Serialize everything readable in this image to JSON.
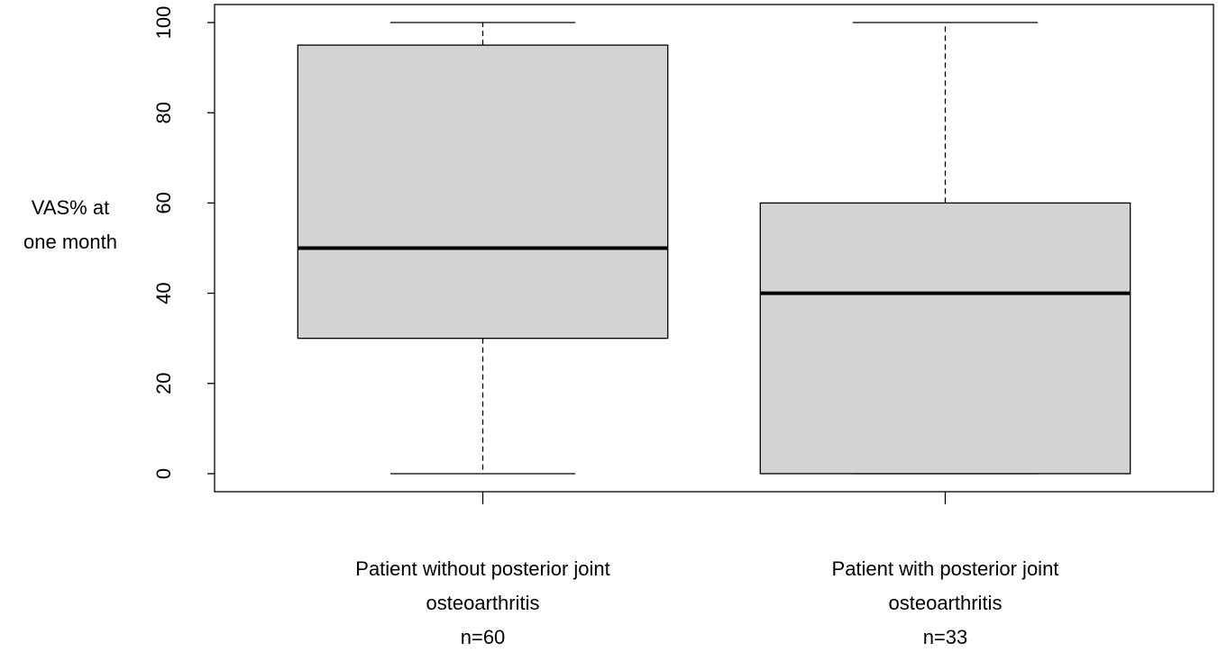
{
  "chart_data": {
    "type": "boxplot",
    "ylabel": [
      "VAS% at",
      "one month"
    ],
    "categories": [
      [
        "Patient without posterior joint",
        "osteoarthritis",
        "n=60"
      ],
      [
        "Patient with posterior joint",
        "osteoarthritis",
        "n=33"
      ]
    ],
    "boxes": [
      {
        "min": 0,
        "q1": 30,
        "median": 50,
        "q3": 95,
        "max": 100
      },
      {
        "min": 0,
        "q1": 0,
        "median": 40,
        "q3": 60,
        "max": 100
      }
    ],
    "color": "#d3d3d3",
    "ylim": [
      -4,
      104
    ],
    "yticks": [
      0,
      20,
      40,
      60,
      80,
      100
    ]
  }
}
